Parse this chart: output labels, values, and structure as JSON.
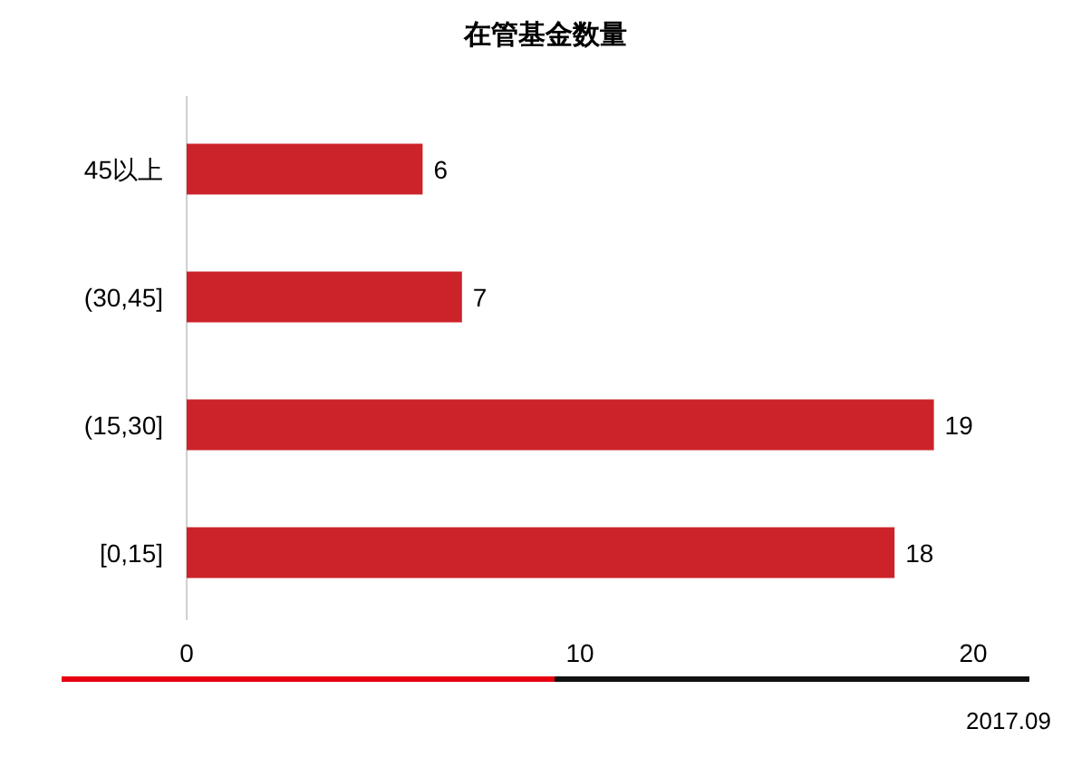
{
  "chart_data": {
    "type": "bar",
    "orientation": "horizontal",
    "title": "在管基金数量",
    "categories": [
      "45以上",
      "(30,45]",
      "(15,30]",
      "[0,15]"
    ],
    "values": [
      6,
      7,
      19,
      18
    ],
    "color": "#cc2229",
    "xlim": [
      0,
      20
    ],
    "xticks": [
      0,
      10,
      20
    ],
    "grid": false,
    "data_labels": true,
    "annotations": [
      "2017.09"
    ]
  }
}
